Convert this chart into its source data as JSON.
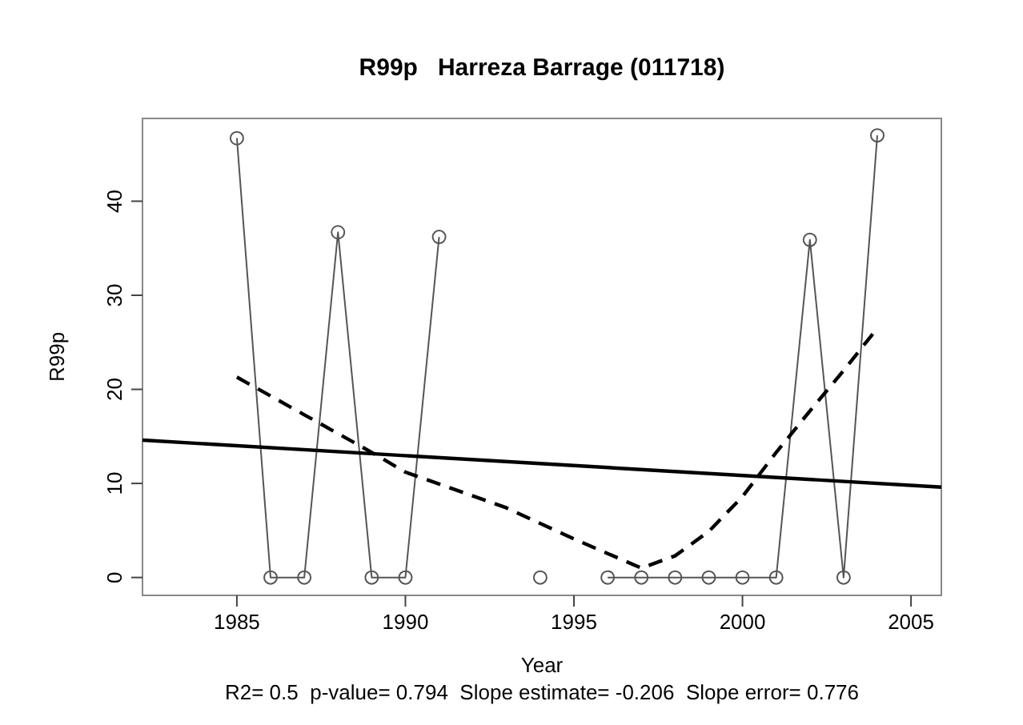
{
  "chart_data": {
    "type": "line",
    "title": "R99p   Harreza Barrage (011718)",
    "xlabel": "Year",
    "ylabel": "R99p",
    "annotations": [
      "R2= 0.5  p-value= 0.794  Slope estimate= -0.206  Slope error= 0.776"
    ],
    "xlim": [
      1982.2,
      2005.9
    ],
    "ylim": [
      -1.9,
      48.8
    ],
    "xticks": [
      1985,
      1990,
      1995,
      2000,
      2005
    ],
    "yticks": [
      0,
      10,
      20,
      30,
      40
    ],
    "grid": false,
    "series": [
      {
        "color": "#555555",
        "marker": "circle",
        "line_style": "solid",
        "x": [
          1985,
          1986,
          1987,
          1988,
          1989,
          1990,
          1991,
          1992,
          1993,
          1994,
          1995,
          1996,
          1997,
          1998,
          1999,
          2000,
          2001,
          2002,
          2003,
          2004
        ],
        "values": [
          46.7,
          0,
          0,
          36.7,
          0,
          0,
          36.2,
          null,
          null,
          0,
          null,
          0,
          0,
          0,
          0,
          0,
          0,
          35.9,
          0,
          47.0
        ]
      },
      {
        "color": "#000000",
        "marker": "none",
        "line_style": "solid",
        "x": [
          1982.2,
          2005.9
        ],
        "values": [
          14.6,
          9.6
        ]
      },
      {
        "color": "#000000",
        "marker": "none",
        "line_style": "dashed",
        "x": [
          1985,
          1987,
          1989,
          1990,
          1993,
          1995,
          1997,
          1998,
          1999,
          2000,
          2001,
          2002,
          2003,
          2004
        ],
        "values": [
          21.3,
          17.3,
          13.3,
          11.2,
          7.4,
          4.1,
          1.0,
          2.3,
          4.9,
          8.6,
          13.3,
          17.7,
          22.0,
          26.5
        ]
      }
    ]
  }
}
